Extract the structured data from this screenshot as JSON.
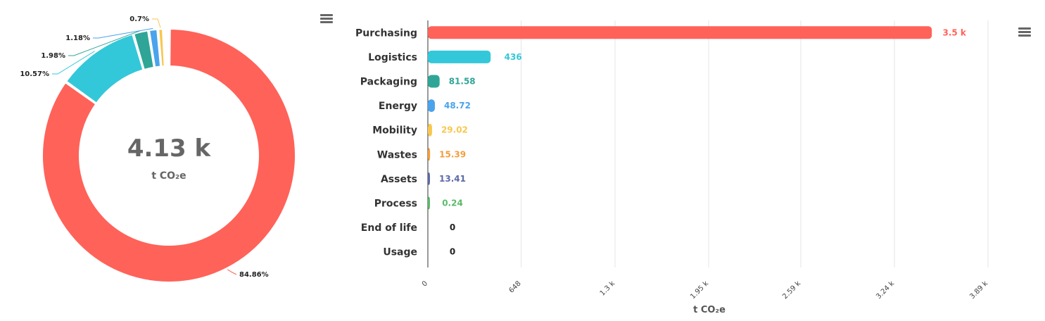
{
  "chart_data": [
    {
      "type": "pie",
      "variant": "donut",
      "center_value": "4.13 k",
      "center_unit": "t CO₂e",
      "slices": [
        {
          "name": "Purchasing",
          "value": 84.86,
          "label": "84.86%",
          "color": "#ff6259"
        },
        {
          "name": "Logistics",
          "value": 10.57,
          "label": "10.57%",
          "color": "#33c8d9"
        },
        {
          "name": "Packaging",
          "value": 1.98,
          "label": "1.98%",
          "color": "#2fa597"
        },
        {
          "name": "Energy",
          "value": 1.18,
          "label": "1.18%",
          "color": "#4aa3ec"
        },
        {
          "name": "Mobility",
          "value": 0.7,
          "label": "0.7%",
          "color": "#f7c74f"
        },
        {
          "name": "Wastes",
          "value": 0.37,
          "label": "",
          "color": "#f29e3c"
        },
        {
          "name": "Assets",
          "value": 0.32,
          "label": "",
          "color": "#5c6aa8"
        },
        {
          "name": "Process",
          "value": 0.006,
          "label": "",
          "color": "#5cba6a"
        }
      ]
    },
    {
      "type": "bar",
      "orientation": "horizontal",
      "categories": [
        "Purchasing",
        "Logistics",
        "Packaging",
        "Energy",
        "Mobility",
        "Wastes",
        "Assets",
        "Process",
        "End of life",
        "Usage"
      ],
      "values": [
        3500,
        436,
        81.58,
        48.72,
        29.02,
        15.39,
        13.41,
        0.24,
        0,
        0
      ],
      "value_labels": [
        "3.5 k",
        "436",
        "81.58",
        "48.72",
        "29.02",
        "15.39",
        "13.41",
        "0.24",
        "0",
        "0"
      ],
      "colors": [
        "#ff6259",
        "#33c8d9",
        "#2fa597",
        "#4aa3ec",
        "#f7c74f",
        "#f29e3c",
        "#5c6aa8",
        "#5cba6a",
        "#222222",
        "#222222"
      ],
      "xlim": [
        0,
        3890
      ],
      "xticks": [
        0,
        648,
        1300,
        1950,
        2590,
        3240,
        3890
      ],
      "xtick_labels": [
        "0",
        "648",
        "1.3 k",
        "1.95 k",
        "2.59 k",
        "3.24 k",
        "3.89 k"
      ],
      "xlabel": "t CO₂e",
      "grid": true
    }
  ],
  "icons": {
    "donut_menu": "hamburger-menu-icon",
    "bar_menu": "hamburger-menu-icon"
  }
}
